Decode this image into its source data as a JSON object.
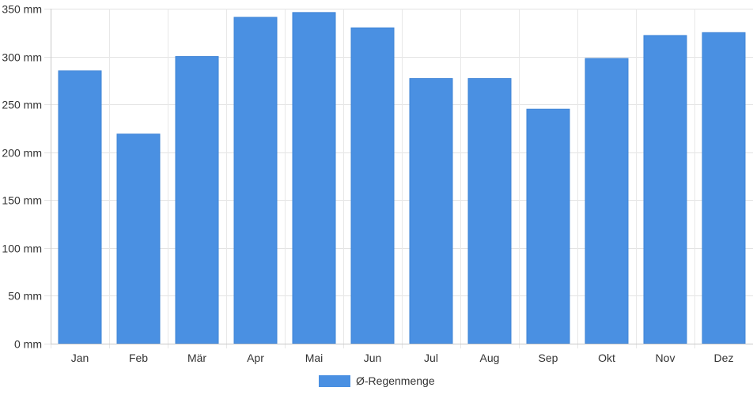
{
  "chart_data": {
    "type": "bar",
    "categories": [
      "Jan",
      "Feb",
      "Mär",
      "Apr",
      "Mai",
      "Jun",
      "Jul",
      "Aug",
      "Sep",
      "Okt",
      "Nov",
      "Dez"
    ],
    "series": [
      {
        "name": "Ø-Regenmenge",
        "values": [
          285,
          219,
          300,
          341,
          346,
          330,
          277,
          277,
          245,
          298,
          322,
          325
        ],
        "color": "#4a90e2"
      }
    ],
    "ylim": [
      0,
      350
    ],
    "y_ticks": [
      "0 mm",
      "50 mm",
      "100 mm",
      "150 mm",
      "200 mm",
      "250 mm",
      "300 mm",
      "350 mm"
    ],
    "grid": true,
    "legend": "bottom-center"
  }
}
